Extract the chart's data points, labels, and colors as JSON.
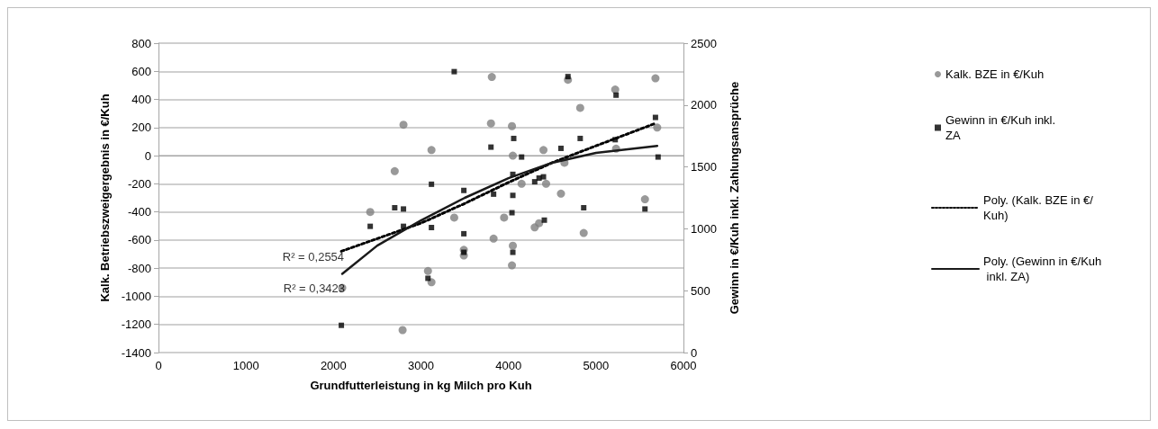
{
  "chart_data": {
    "type": "scatter",
    "xlabel": "Grundfutterleistung in kg Milch pro Kuh",
    "ylabel": "Kalk. Betriebszweigergebnis in €/Kuh",
    "y2label": "Gewinn in €/Kuh inkl. Zahlungsansprüche",
    "xlim": [
      0,
      6000
    ],
    "xticks": [
      0,
      1000,
      2000,
      3000,
      4000,
      5000,
      6000
    ],
    "ylim": [
      -1400,
      800
    ],
    "yticks": [
      -1400,
      -1200,
      -1000,
      -800,
      -600,
      -400,
      -200,
      0,
      200,
      400,
      600,
      800
    ],
    "y2lim": [
      0,
      2500
    ],
    "y2ticks": [
      0,
      500,
      1000,
      1500,
      2000,
      2500
    ],
    "grid": "y",
    "legend": "right",
    "annotations": [
      "R² = 0,2554",
      "R² = 0,3423"
    ],
    "series": [
      {
        "name": "Kalk. BZE in €/Kuh",
        "marker": "circle",
        "color": "#7f7f7f",
        "x": [
          2100,
          2420,
          2700,
          2800,
          2790,
          3120,
          3080,
          3120,
          3380,
          3490,
          3490,
          3810,
          3800,
          3830,
          3950,
          4040,
          4050,
          4050,
          4040,
          4150,
          4300,
          4350,
          4400,
          4430,
          4600,
          4640,
          4680,
          4820,
          4860,
          5220,
          5230,
          5560,
          5680,
          5700
        ],
        "values": [
          -940,
          -400,
          -110,
          220,
          -1240,
          40,
          -820,
          -900,
          -440,
          -670,
          -710,
          560,
          230,
          -590,
          -440,
          210,
          0,
          -640,
          -780,
          -200,
          -510,
          -480,
          40,
          -200,
          -270,
          -50,
          540,
          340,
          -550,
          470,
          50,
          -310,
          550,
          200
        ]
      },
      {
        "name": "Gewinn in €/Kuh inkl. ZA",
        "marker": "square",
        "color": "#000000",
        "axis": "y2",
        "x": [
          2090,
          2420,
          2700,
          2800,
          2800,
          3080,
          3120,
          3120,
          3380,
          3490,
          3490,
          3490,
          3800,
          3830,
          4050,
          4060,
          4050,
          4040,
          4050,
          4150,
          4300,
          4350,
          4410,
          4400,
          4600,
          4680,
          4820,
          4860,
          5220,
          5230,
          5560,
          5680,
          5710
        ],
        "values": [
          220,
          1020,
          1170,
          1160,
          1020,
          600,
          1010,
          1360,
          2270,
          1310,
          960,
          810,
          1660,
          1280,
          1440,
          1730,
          1270,
          1130,
          810,
          1580,
          1380,
          1410,
          1070,
          1420,
          1650,
          2230,
          1730,
          1170,
          1720,
          2080,
          1160,
          1900,
          1580
        ]
      },
      {
        "name": "Poly. (Kalk. BZE in €/Kuh)",
        "type": "line",
        "marker": "none",
        "line_style": "dotted",
        "color": "#000000",
        "x": [
          2090,
          2500,
          3000,
          3500,
          4000,
          4500,
          5000,
          5680
        ],
        "values": [
          -680,
          -590,
          -480,
          -340,
          -190,
          -50,
          70,
          230
        ]
      },
      {
        "name": "Poly. (Gewinn in €/Kuh inkl. ZA)",
        "type": "line",
        "marker": "none",
        "line_style": "solid",
        "color": "#1a1a1a",
        "axis": "y2",
        "x": [
          2100,
          2500,
          3000,
          3500,
          4000,
          4500,
          5000,
          5700
        ],
        "values": [
          636,
          864,
          1068,
          1250,
          1409,
          1534,
          1614,
          1670
        ]
      }
    ]
  }
}
